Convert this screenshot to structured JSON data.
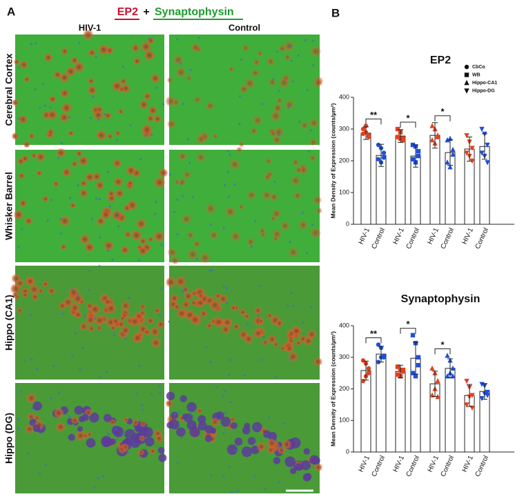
{
  "panel_a": {
    "letter": "A",
    "title_left": "EP2",
    "title_plus": "+",
    "title_right": "Synaptophysin",
    "columns": [
      "HIV-1",
      "Control"
    ],
    "rows": [
      "Cerebral Cortex",
      "Whisker Barrel",
      "Hippo (CA1)",
      "Hippo (DG)"
    ]
  },
  "panel_b_letter": "B",
  "chart_data": [
    {
      "type": "bar",
      "title": "EP2",
      "ylabel": "Mean Density of Expression (counts/µm²)",
      "categories": [
        "HIV-1",
        "Control",
        "HIV-1",
        "Control",
        "HIV-1",
        "Control",
        "HIV-1",
        "Control"
      ],
      "values": [
        287,
        217,
        278,
        215,
        280,
        226,
        237,
        245
      ],
      "errors": [
        20,
        35,
        20,
        35,
        40,
        40,
        38,
        40
      ],
      "points": [
        [
          300,
          290,
          280,
          285,
          310,
          275
        ],
        [
          250,
          240,
          225,
          205,
          195,
          210
        ],
        [
          300,
          290,
          270,
          275,
          270,
          265
        ],
        [
          250,
          245,
          230,
          205,
          195,
          215
        ],
        [
          310,
          300,
          275,
          265,
          255,
          280
        ],
        [
          265,
          270,
          235,
          195,
          180,
          220
        ],
        [
          280,
          260,
          240,
          225,
          215,
          200
        ],
        [
          300,
          285,
          250,
          225,
          215,
          195
        ]
      ],
      "colors": [
        "#e2401e",
        "#1f4fd8"
      ],
      "significance": [
        "**",
        "*",
        "*",
        null
      ],
      "legend": [
        {
          "name": "CbCo",
          "marker": "circle"
        },
        {
          "name": "WB",
          "marker": "square"
        },
        {
          "name": "Hippo-CA1",
          "marker": "triangle"
        },
        {
          "name": "Hippo-DG",
          "marker": "triangle-down"
        }
      ],
      "ylim": [
        0,
        400
      ],
      "yticks": [
        0,
        100,
        200,
        300,
        400
      ]
    },
    {
      "type": "bar",
      "title": "Synaptophysin",
      "ylabel": "Mean Density of Expression (counts/µm²)",
      "categories": [
        "HIV-1",
        "Control",
        "HIV-1",
        "Control",
        "HIV-1",
        "Control",
        "HIV-1",
        "Control"
      ],
      "values": [
        258,
        310,
        255,
        297,
        216,
        265,
        179,
        192
      ],
      "errors": [
        30,
        25,
        20,
        50,
        40,
        30,
        35,
        25
      ],
      "points": [
        [
          290,
          280,
          250,
          225,
          240,
          265
        ],
        [
          340,
          330,
          305,
          285,
          300,
          300
        ],
        [
          270,
          260,
          255,
          245,
          240,
          260
        ],
        [
          370,
          345,
          300,
          250,
          240,
          275
        ],
        [
          265,
          250,
          225,
          180,
          200,
          175
        ],
        [
          305,
          290,
          265,
          240,
          250,
          240
        ],
        [
          225,
          205,
          180,
          150,
          175,
          140
        ],
        [
          215,
          210,
          190,
          170,
          185,
          180
        ]
      ],
      "colors": [
        "#e2401e",
        "#1f4fd8"
      ],
      "significance": [
        "**",
        "*",
        "*",
        null
      ],
      "ylim": [
        0,
        400
      ],
      "yticks": [
        0,
        100,
        200,
        300,
        400
      ]
    }
  ]
}
